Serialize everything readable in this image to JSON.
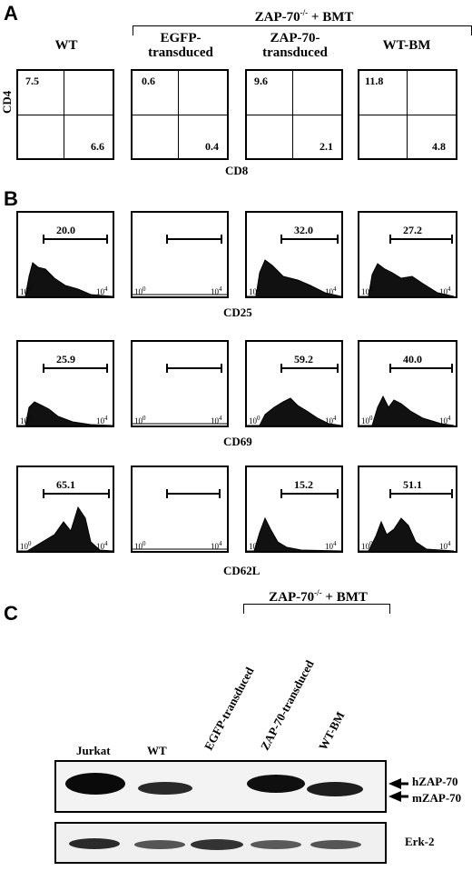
{
  "panels": {
    "a": "A",
    "b": "B",
    "c": "C"
  },
  "header": {
    "group": "ZAP-70",
    "group_sup": "-/-",
    "group_suffix": " + BMT"
  },
  "columns": [
    {
      "label": "WT"
    },
    {
      "label": "EGFP-transduced",
      "line1": "EGFP-",
      "line2": "transduced"
    },
    {
      "label": "ZAP-70-transduced",
      "line1": "ZAP-70-",
      "line2": "transduced"
    },
    {
      "label": "WT-BM"
    }
  ],
  "panel_a": {
    "y_axis": "CD4",
    "x_axis": "CD8",
    "quadrants": [
      {
        "upper_left": "7.5",
        "lower_right": "6.6"
      },
      {
        "upper_left": "0.6",
        "lower_right": "0.4"
      },
      {
        "upper_left": "9.6",
        "lower_right": "2.1"
      },
      {
        "upper_left": "11.8",
        "lower_right": "4.8"
      }
    ]
  },
  "panel_b": {
    "rows": [
      {
        "marker": "CD25",
        "values": [
          "20.0",
          "",
          "32.0",
          "27.2"
        ]
      },
      {
        "marker": "CD69",
        "values": [
          "25.9",
          "",
          "59.2",
          "40.0"
        ]
      },
      {
        "marker": "CD62L",
        "values": [
          "65.1",
          "",
          "15.2",
          "51.1"
        ]
      }
    ],
    "tick_low": "10",
    "tick_low_exp": "0",
    "tick_high": "10",
    "tick_high_exp": "4"
  },
  "panel_c": {
    "lanes": [
      "Jurkat",
      "WT",
      "EGFP-transduced",
      "ZAP-70-transduced",
      "WT-BM"
    ],
    "bands": {
      "upper": "hZAP-70",
      "lower": "mZAP-70",
      "loading": "Erk-2"
    }
  }
}
